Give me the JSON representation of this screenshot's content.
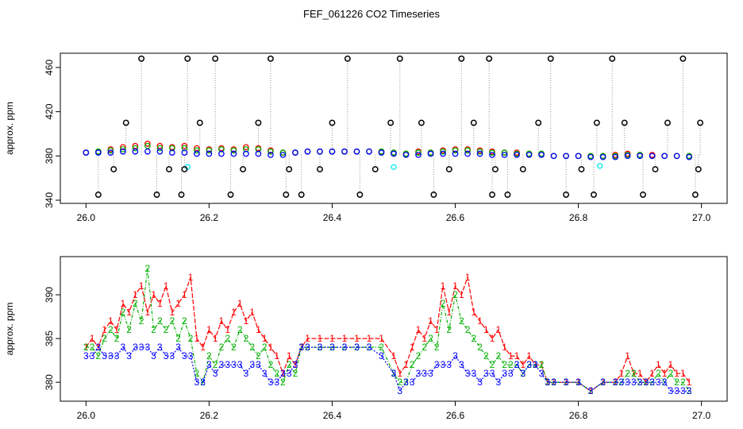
{
  "title": "FEF_061226  CO2 Timeseries",
  "colors": {
    "black": "#000000",
    "red": "#ff0000",
    "green": "#00b000",
    "blue": "#0000ff",
    "cyan": "#00e5ee",
    "gray": "#909090"
  },
  "chart_data": [
    {
      "type": "scatter",
      "title": "",
      "xlabel": "",
      "ylabel": "approx. ppm",
      "xlim": [
        26.0,
        27.0
      ],
      "ylim": [
        340,
        470
      ],
      "x_ticks": [
        "26.0",
        "26.2",
        "26.4",
        "26.6",
        "26.8",
        "27.0"
      ],
      "y_ticks": [
        "340",
        "380",
        "420",
        "460"
      ],
      "y_tick_values": [
        340,
        380,
        420,
        460
      ],
      "x_tick_values": [
        26.0,
        26.2,
        26.4,
        26.6,
        26.8,
        27.0
      ],
      "series": [
        {
          "name": "red",
          "color": "#ff0000",
          "x": [
            26.0,
            26.02,
            26.04,
            26.06,
            26.08,
            26.1,
            26.12,
            26.14,
            26.16,
            26.18,
            26.2,
            26.22,
            26.24,
            26.26,
            26.28,
            26.3,
            26.32,
            26.34,
            26.36,
            26.38,
            26.4,
            26.42,
            26.44,
            26.46,
            26.48,
            26.5,
            26.52,
            26.54,
            26.56,
            26.58,
            26.6,
            26.62,
            26.64,
            26.66,
            26.68,
            26.7,
            26.72,
            26.74,
            26.76,
            26.78,
            26.8,
            26.82,
            26.84,
            26.86,
            26.88,
            26.9,
            26.92,
            26.94,
            26.96,
            26.98
          ],
          "y": [
            383,
            384,
            386,
            388,
            389,
            391,
            389,
            388,
            389,
            387,
            386,
            387,
            386,
            388,
            387,
            385,
            383,
            383,
            384,
            384,
            384,
            384,
            384,
            384,
            384,
            383,
            382,
            384,
            383,
            385,
            386,
            386,
            385,
            384,
            383,
            383,
            382,
            382,
            380,
            380,
            380,
            380,
            380,
            381,
            382,
            381,
            381,
            380,
            380,
            380
          ]
        },
        {
          "name": "green",
          "color": "#00b000",
          "x": [
            26.0,
            26.02,
            26.04,
            26.06,
            26.08,
            26.1,
            26.12,
            26.14,
            26.16,
            26.18,
            26.2,
            26.22,
            26.24,
            26.26,
            26.28,
            26.3,
            26.32,
            26.34,
            26.36,
            26.38,
            26.4,
            26.42,
            26.44,
            26.46,
            26.48,
            26.5,
            26.52,
            26.54,
            26.56,
            26.58,
            26.6,
            26.62,
            26.64,
            26.66,
            26.68,
            26.7,
            26.72,
            26.74,
            26.76,
            26.78,
            26.8,
            26.82,
            26.84,
            26.86,
            26.88,
            26.9,
            26.92,
            26.94,
            26.96,
            26.98
          ],
          "y": [
            383,
            384,
            385,
            386,
            387,
            389,
            387,
            387,
            387,
            385,
            385,
            386,
            385,
            386,
            386,
            384,
            383,
            383,
            384,
            384,
            384,
            384,
            384,
            384,
            384,
            383,
            382,
            383,
            383,
            384,
            385,
            385,
            384,
            383,
            383,
            382,
            382,
            382,
            380,
            380,
            380,
            380,
            380,
            380,
            381,
            381,
            380,
            380,
            380,
            380
          ]
        },
        {
          "name": "blue",
          "color": "#0000ff",
          "x": [
            26.0,
            26.02,
            26.04,
            26.06,
            26.08,
            26.1,
            26.12,
            26.14,
            26.16,
            26.18,
            26.2,
            26.22,
            26.24,
            26.26,
            26.28,
            26.3,
            26.32,
            26.34,
            26.36,
            26.38,
            26.4,
            26.42,
            26.44,
            26.46,
            26.48,
            26.5,
            26.52,
            26.54,
            26.56,
            26.58,
            26.6,
            26.62,
            26.64,
            26.66,
            26.68,
            26.7,
            26.72,
            26.74,
            26.76,
            26.78,
            26.8,
            26.82,
            26.84,
            26.86,
            26.88,
            26.9,
            26.92,
            26.94,
            26.96,
            26.98
          ],
          "y": [
            383,
            383,
            383,
            384,
            384,
            384,
            384,
            383,
            383,
            382,
            382,
            382,
            382,
            382,
            382,
            381,
            381,
            383,
            384,
            384,
            384,
            384,
            384,
            384,
            383,
            382,
            381,
            381,
            382,
            382,
            382,
            382,
            382,
            381,
            381,
            381,
            381,
            381,
            380,
            380,
            380,
            379,
            379,
            379,
            380,
            380,
            380,
            380,
            380,
            379
          ]
        },
        {
          "name": "black",
          "color": "#000000",
          "x": [
            26.02,
            26.045,
            26.065,
            26.09,
            26.115,
            26.135,
            26.155,
            26.16,
            26.165,
            26.185,
            26.21,
            26.235,
            26.255,
            26.28,
            26.3,
            26.325,
            26.33,
            26.35,
            26.38,
            26.4,
            26.425,
            26.445,
            26.47,
            26.495,
            26.51,
            26.545,
            26.565,
            26.59,
            26.61,
            26.63,
            26.655,
            26.66,
            26.665,
            26.685,
            26.71,
            26.735,
            26.755,
            26.78,
            26.805,
            26.825,
            26.83,
            26.855,
            26.875,
            26.905,
            26.925,
            26.945,
            26.97,
            26.99,
            26.995,
            26.998
          ],
          "y": [
            345,
            368,
            410,
            468,
            345,
            368,
            345,
            368,
            468,
            410,
            468,
            345,
            368,
            410,
            468,
            345,
            368,
            345,
            368,
            410,
            468,
            345,
            368,
            410,
            468,
            410,
            345,
            368,
            468,
            410,
            468,
            345,
            368,
            345,
            368,
            410,
            468,
            345,
            368,
            345,
            410,
            468,
            410,
            345,
            368,
            410,
            468,
            345,
            368,
            410
          ]
        },
        {
          "name": "cyan",
          "color": "#00e5ee",
          "x": [
            26.165,
            26.5,
            26.835
          ],
          "y": [
            370,
            370,
            371
          ]
        }
      ]
    },
    {
      "type": "line",
      "title": "",
      "xlabel": "",
      "ylabel": "approx. ppm",
      "xlim": [
        26.0,
        27.0
      ],
      "ylim": [
        378.2,
        394.0
      ],
      "x_ticks": [
        "26.0",
        "26.2",
        "26.4",
        "26.6",
        "26.8",
        "27.0"
      ],
      "y_ticks": [
        "380",
        "385",
        "390"
      ],
      "y_tick_values": [
        380,
        385,
        390
      ],
      "x_tick_values": [
        26.0,
        26.2,
        26.4,
        26.6,
        26.8,
        27.0
      ],
      "series": [
        {
          "name": "1",
          "color": "#ff0000",
          "x": [
            26.0,
            26.01,
            26.02,
            26.03,
            26.04,
            26.05,
            26.06,
            26.07,
            26.08,
            26.09,
            26.1,
            26.11,
            26.12,
            26.13,
            26.14,
            26.15,
            26.16,
            26.17,
            26.18,
            26.19,
            26.2,
            26.21,
            26.22,
            26.23,
            26.24,
            26.25,
            26.26,
            26.27,
            26.28,
            26.29,
            26.3,
            26.31,
            26.32,
            26.33,
            26.34,
            26.35,
            26.36,
            26.38,
            26.4,
            26.42,
            26.44,
            26.46,
            26.48,
            26.5,
            26.51,
            26.52,
            26.53,
            26.54,
            26.55,
            26.56,
            26.57,
            26.58,
            26.59,
            26.6,
            26.61,
            26.62,
            26.63,
            26.64,
            26.65,
            26.66,
            26.67,
            26.68,
            26.69,
            26.7,
            26.71,
            26.72,
            26.73,
            26.74,
            26.75,
            26.76,
            26.78,
            26.8,
            26.82,
            26.84,
            26.86,
            26.87,
            26.88,
            26.89,
            26.9,
            26.91,
            26.92,
            26.93,
            26.94,
            26.95,
            26.96,
            26.97,
            26.98
          ],
          "y": [
            384,
            385,
            384,
            386,
            387,
            386,
            389,
            388,
            390,
            391,
            388,
            390,
            389,
            391,
            388,
            389,
            390,
            392,
            385,
            384,
            386,
            385,
            387,
            386,
            388,
            389,
            387,
            388,
            386,
            385,
            384,
            383,
            381,
            383,
            382,
            384,
            385,
            385,
            385,
            385,
            385,
            385,
            385,
            383,
            381,
            382,
            384,
            386,
            385,
            387,
            386,
            391,
            388,
            391,
            390,
            392,
            388,
            387,
            386,
            385,
            386,
            384,
            383,
            383,
            382,
            383,
            382,
            382,
            380,
            380,
            380,
            380,
            379,
            380,
            380,
            381,
            383,
            381,
            381,
            380,
            381,
            382,
            381,
            382,
            381,
            381,
            380
          ]
        },
        {
          "name": "2",
          "color": "#00b000",
          "x": [
            26.0,
            26.01,
            26.02,
            26.03,
            26.04,
            26.05,
            26.06,
            26.07,
            26.08,
            26.09,
            26.1,
            26.11,
            26.12,
            26.13,
            26.14,
            26.15,
            26.16,
            26.17,
            26.18,
            26.19,
            26.2,
            26.21,
            26.22,
            26.23,
            26.24,
            26.25,
            26.26,
            26.27,
            26.28,
            26.29,
            26.3,
            26.31,
            26.32,
            26.33,
            26.34,
            26.35,
            26.36,
            26.38,
            26.4,
            26.42,
            26.44,
            26.46,
            26.48,
            26.5,
            26.51,
            26.52,
            26.53,
            26.54,
            26.55,
            26.56,
            26.57,
            26.58,
            26.59,
            26.6,
            26.61,
            26.62,
            26.63,
            26.64,
            26.65,
            26.66,
            26.67,
            26.68,
            26.69,
            26.7,
            26.71,
            26.72,
            26.73,
            26.74,
            26.75,
            26.76,
            26.78,
            26.8,
            26.82,
            26.84,
            26.86,
            26.87,
            26.88,
            26.89,
            26.9,
            26.91,
            26.92,
            26.93,
            26.94,
            26.95,
            26.96,
            26.97,
            26.98
          ],
          "y": [
            384,
            384,
            383,
            385,
            386,
            385,
            388,
            386,
            389,
            387,
            393,
            386,
            387,
            386,
            387,
            385,
            387,
            385,
            381,
            380,
            383,
            382,
            384,
            385,
            384,
            386,
            385,
            384,
            383,
            384,
            382,
            381,
            380,
            382,
            381,
            384,
            384,
            384,
            384,
            384,
            384,
            384,
            384,
            381,
            380,
            380,
            382,
            383,
            384,
            385,
            384,
            389,
            386,
            390,
            387,
            386,
            385,
            384,
            383,
            382,
            383,
            382,
            382,
            382,
            381,
            382,
            382,
            382,
            380,
            380,
            380,
            380,
            379,
            380,
            380,
            380,
            381,
            381,
            380,
            380,
            380,
            381,
            380,
            381,
            380,
            380,
            379
          ]
        },
        {
          "name": "3",
          "color": "#0000ff",
          "x": [
            26.0,
            26.01,
            26.02,
            26.03,
            26.04,
            26.05,
            26.06,
            26.07,
            26.08,
            26.09,
            26.1,
            26.11,
            26.12,
            26.13,
            26.14,
            26.15,
            26.16,
            26.17,
            26.18,
            26.19,
            26.2,
            26.21,
            26.22,
            26.23,
            26.24,
            26.25,
            26.26,
            26.27,
            26.28,
            26.29,
            26.3,
            26.31,
            26.32,
            26.33,
            26.34,
            26.35,
            26.36,
            26.38,
            26.4,
            26.42,
            26.44,
            26.46,
            26.48,
            26.5,
            26.51,
            26.52,
            26.53,
            26.54,
            26.55,
            26.56,
            26.57,
            26.58,
            26.59,
            26.6,
            26.61,
            26.62,
            26.63,
            26.64,
            26.65,
            26.66,
            26.67,
            26.68,
            26.69,
            26.7,
            26.71,
            26.72,
            26.73,
            26.74,
            26.75,
            26.76,
            26.78,
            26.8,
            26.82,
            26.84,
            26.86,
            26.87,
            26.88,
            26.89,
            26.9,
            26.91,
            26.92,
            26.93,
            26.94,
            26.95,
            26.96,
            26.97,
            26.98
          ],
          "y": [
            383,
            383,
            384,
            383,
            383,
            383,
            384,
            383,
            384,
            384,
            384,
            383,
            384,
            383,
            383,
            384,
            383,
            383,
            380,
            380,
            382,
            381,
            382,
            382,
            382,
            382,
            381,
            382,
            382,
            381,
            380,
            380,
            381,
            381,
            382,
            384,
            384,
            384,
            384,
            384,
            384,
            384,
            383,
            381,
            379,
            380,
            380,
            381,
            381,
            381,
            382,
            382,
            382,
            383,
            382,
            381,
            381,
            380,
            381,
            381,
            380,
            381,
            381,
            382,
            381,
            382,
            382,
            381,
            380,
            380,
            380,
            380,
            379,
            380,
            380,
            380,
            380,
            380,
            380,
            380,
            380,
            380,
            380,
            379,
            379,
            379,
            379
          ]
        }
      ]
    }
  ]
}
